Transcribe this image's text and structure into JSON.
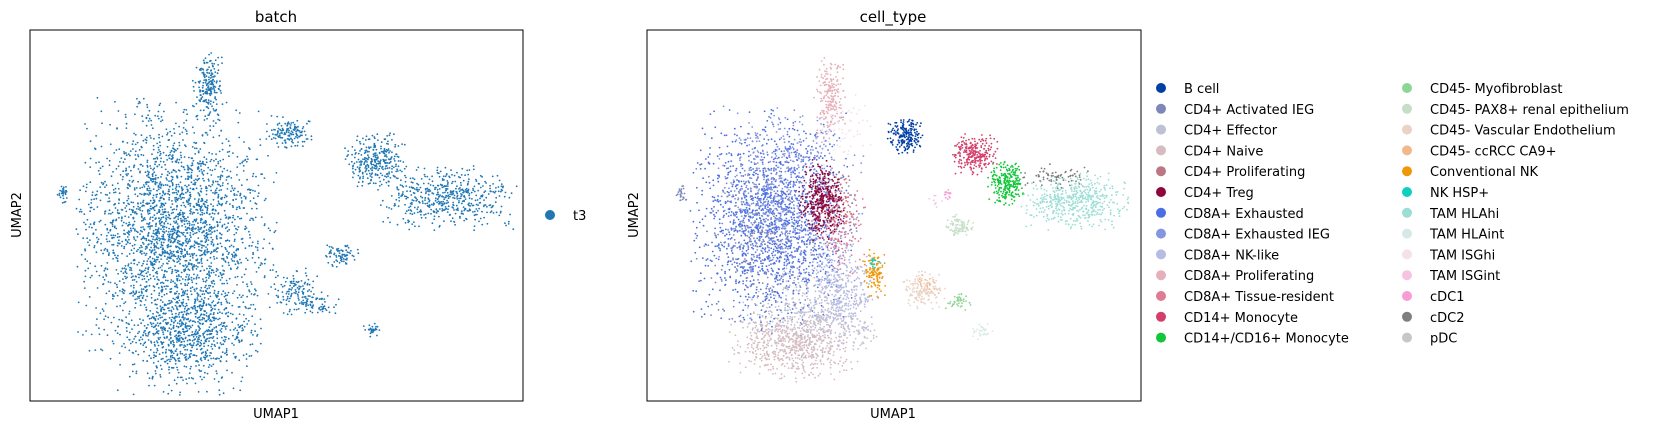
{
  "chart_data": [
    {
      "type": "scatter",
      "title": "batch",
      "xlabel": "UMAP1",
      "ylabel": "UMAP2",
      "ticks": "none",
      "legend": {
        "placement": "right",
        "entries": [
          {
            "name": "t3",
            "color": "#1f77b4"
          }
        ]
      },
      "series": [
        {
          "name": "t3",
          "color": "#1f77b4",
          "regions": [
            {
              "cx": 3.5,
              "cy": 4.6,
              "rx": 2.2,
              "ry": 3.2,
              "n": 2600
            },
            {
              "cx": 3.8,
              "cy": 1.6,
              "rx": 1.6,
              "ry": 1.4,
              "n": 700
            },
            {
              "cx": 4.3,
              "cy": 8.6,
              "rx": 0.35,
              "ry": 0.9,
              "n": 200
            },
            {
              "cx": 6.3,
              "cy": 7.3,
              "rx": 0.5,
              "ry": 0.4,
              "n": 140
            },
            {
              "cx": 8.5,
              "cy": 6.5,
              "rx": 0.7,
              "ry": 0.7,
              "n": 300
            },
            {
              "cx": 10.3,
              "cy": 5.5,
              "rx": 1.5,
              "ry": 0.8,
              "n": 500
            },
            {
              "cx": 7.6,
              "cy": 3.9,
              "rx": 0.4,
              "ry": 0.3,
              "n": 80
            },
            {
              "cx": 6.5,
              "cy": 2.9,
              "rx": 0.6,
              "ry": 0.6,
              "n": 120
            },
            {
              "cx": 7.0,
              "cy": 2.5,
              "rx": 0.5,
              "ry": 0.25,
              "n": 50
            },
            {
              "cx": 8.4,
              "cy": 1.8,
              "rx": 0.2,
              "ry": 0.2,
              "n": 30
            },
            {
              "cx": 0.7,
              "cy": 5.6,
              "rx": 0.15,
              "ry": 0.25,
              "n": 30
            }
          ]
        }
      ]
    },
    {
      "type": "scatter",
      "title": "cell_type",
      "xlabel": "UMAP1",
      "ylabel": "UMAP2",
      "ticks": "none",
      "legend": {
        "placement": "right",
        "columns": 2,
        "entries": [
          {
            "name": "B cell",
            "color": "#023fa5"
          },
          {
            "name": "CD4+ Activated IEG",
            "color": "#7d87b9"
          },
          {
            "name": "CD4+ Effector",
            "color": "#bec1d4"
          },
          {
            "name": "CD4+ Naive",
            "color": "#d6bcc0"
          },
          {
            "name": "CD4+ Proliferating",
            "color": "#bb7784"
          },
          {
            "name": "CD4+ Treg",
            "color": "#8e063b"
          },
          {
            "name": "CD8A+ Exhausted",
            "color": "#4a6fe3"
          },
          {
            "name": "CD8A+ Exhausted IEG",
            "color": "#8595e1"
          },
          {
            "name": "CD8A+ NK-like",
            "color": "#b5bbe3"
          },
          {
            "name": "CD8A+ Proliferating",
            "color": "#e6afb9"
          },
          {
            "name": "CD8A+ Tissue-resident",
            "color": "#e07b91"
          },
          {
            "name": "CD14+ Monocyte",
            "color": "#d33f6a"
          },
          {
            "name": "CD14+/CD16+ Monocyte",
            "color": "#11c638"
          },
          {
            "name": "CD45- Myofibroblast",
            "color": "#8dd593"
          },
          {
            "name": "CD45- PAX8+ renal epithelium",
            "color": "#c6dec7"
          },
          {
            "name": "CD45- Vascular Endothelium",
            "color": "#ead3c6"
          },
          {
            "name": "CD45- ccRCC CA9+",
            "color": "#f0b98d"
          },
          {
            "name": "Conventional NK",
            "color": "#ef9708"
          },
          {
            "name": "NK HSP+",
            "color": "#0fcfc0"
          },
          {
            "name": "TAM HLAhi",
            "color": "#9cded6"
          },
          {
            "name": "TAM HLAint",
            "color": "#d5eae7"
          },
          {
            "name": "TAM ISGhi",
            "color": "#f3e1eb"
          },
          {
            "name": "TAM ISGint",
            "color": "#f6c4e1"
          },
          {
            "name": "cDC1",
            "color": "#f79cd4"
          },
          {
            "name": "cDC2",
            "color": "#7f7f7f"
          },
          {
            "name": "pDC",
            "color": "#c7c7c7"
          }
        ]
      },
      "series": [
        {
          "name": "CD8A+ Exhausted",
          "color": "#4a6fe3",
          "regions": [
            {
              "cx": 3.0,
              "cy": 4.8,
              "rx": 1.8,
              "ry": 2.8,
              "n": 1500
            }
          ]
        },
        {
          "name": "CD8A+ Exhausted IEG",
          "color": "#8595e1",
          "regions": [
            {
              "cx": 3.4,
              "cy": 5.6,
              "rx": 1.6,
              "ry": 2.2,
              "n": 700
            }
          ]
        },
        {
          "name": "CD4+ Activated IEG",
          "color": "#7d87b9",
          "regions": [
            {
              "cx": 2.8,
              "cy": 4.2,
              "rx": 1.5,
              "ry": 2.0,
              "n": 300
            }
          ]
        },
        {
          "name": "CD8A+ NK-like",
          "color": "#b5bbe3",
          "regions": [
            {
              "cx": 4.7,
              "cy": 2.9,
              "rx": 0.8,
              "ry": 1.4,
              "n": 400
            }
          ]
        },
        {
          "name": "CD4+ Effector",
          "color": "#bec1d4",
          "regions": [
            {
              "cx": 3.8,
              "cy": 2.2,
              "rx": 1.4,
              "ry": 1.2,
              "n": 400
            }
          ]
        },
        {
          "name": "CD4+ Naive",
          "color": "#d6bcc0",
          "regions": [
            {
              "cx": 3.5,
              "cy": 1.4,
              "rx": 1.4,
              "ry": 0.9,
              "n": 600
            }
          ]
        },
        {
          "name": "CD4+ Proliferating",
          "color": "#bb7784",
          "regions": [
            {
              "cx": 4.6,
              "cy": 5.2,
              "rx": 0.5,
              "ry": 1.0,
              "n": 100
            }
          ]
        },
        {
          "name": "CD4+ Treg",
          "color": "#8e063b",
          "regions": [
            {
              "cx": 4.2,
              "cy": 5.4,
              "rx": 0.5,
              "ry": 1.0,
              "n": 400
            }
          ]
        },
        {
          "name": "CD8A+ Proliferating",
          "color": "#e6afb9",
          "regions": [
            {
              "cx": 4.4,
              "cy": 8.2,
              "rx": 0.35,
              "ry": 1.1,
              "n": 200
            }
          ]
        },
        {
          "name": "CD8A+ Tissue-resident",
          "color": "#e07b91",
          "regions": [
            {
              "cx": 4.7,
              "cy": 4.6,
              "rx": 0.6,
              "ry": 1.2,
              "n": 120
            }
          ]
        },
        {
          "name": "B cell",
          "color": "#023fa5",
          "regions": [
            {
              "cx": 6.3,
              "cy": 7.2,
              "rx": 0.4,
              "ry": 0.45,
              "n": 200
            }
          ]
        },
        {
          "name": "CD14+ Monocyte",
          "color": "#d33f6a",
          "regions": [
            {
              "cx": 8.0,
              "cy": 6.7,
              "rx": 0.5,
              "ry": 0.5,
              "n": 250
            }
          ]
        },
        {
          "name": "CD14+/CD16+ Monocyte",
          "color": "#11c638",
          "regions": [
            {
              "cx": 8.8,
              "cy": 5.9,
              "rx": 0.4,
              "ry": 0.55,
              "n": 250
            }
          ]
        },
        {
          "name": "TAM HLAhi",
          "color": "#9cded6",
          "regions": [
            {
              "cx": 10.5,
              "cy": 5.4,
              "rx": 1.2,
              "ry": 0.7,
              "n": 500
            }
          ]
        },
        {
          "name": "cDC2",
          "color": "#7f7f7f",
          "regions": [
            {
              "cx": 10.0,
              "cy": 6.1,
              "rx": 0.8,
              "ry": 0.3,
              "n": 70
            }
          ]
        },
        {
          "name": "CD45- PAX8+ renal epithelium",
          "color": "#c6dec7",
          "regions": [
            {
              "cx": 7.6,
              "cy": 4.7,
              "rx": 0.35,
              "ry": 0.3,
              "n": 90
            }
          ]
        },
        {
          "name": "Conventional NK",
          "color": "#ef9708",
          "regions": [
            {
              "cx": 5.5,
              "cy": 3.4,
              "rx": 0.25,
              "ry": 0.6,
              "n": 120
            }
          ]
        },
        {
          "name": "NK HSP+",
          "color": "#0fcfc0",
          "regions": [
            {
              "cx": 5.5,
              "cy": 3.7,
              "rx": 0.15,
              "ry": 0.15,
              "n": 15
            }
          ]
        },
        {
          "name": "CD45- Vascular Endothelium",
          "color": "#ead3c6",
          "regions": [
            {
              "cx": 6.7,
              "cy": 2.9,
              "rx": 0.5,
              "ry": 0.5,
              "n": 150
            }
          ]
        },
        {
          "name": "CD45- Myofibroblast",
          "color": "#8dd593",
          "regions": [
            {
              "cx": 7.6,
              "cy": 2.6,
              "rx": 0.3,
              "ry": 0.2,
              "n": 40
            }
          ]
        },
        {
          "name": "TAM HLAint",
          "color": "#d5eae7",
          "regions": [
            {
              "cx": 8.2,
              "cy": 1.8,
              "rx": 0.25,
              "ry": 0.25,
              "n": 30
            }
          ]
        },
        {
          "name": "cDC1",
          "color": "#f79cd4",
          "regions": [
            {
              "cx": 7.3,
              "cy": 5.6,
              "rx": 0.15,
              "ry": 0.15,
              "n": 15
            }
          ]
        },
        {
          "name": "TAM ISGhi",
          "color": "#f3e1eb",
          "regions": [
            {
              "cx": 4.8,
              "cy": 7.4,
              "rx": 0.6,
              "ry": 1.0,
              "n": 60
            }
          ]
        },
        {
          "name": "pDC",
          "color": "#c7c7c7",
          "regions": [
            {
              "cx": 5.3,
              "cy": 1.7,
              "rx": 0.3,
              "ry": 0.4,
              "n": 30
            }
          ]
        },
        {
          "name": "CD45- ccRCC CA9+",
          "color": "#f0b98d",
          "regions": [
            {
              "cx": 6.9,
              "cy": 3.1,
              "rx": 0.3,
              "ry": 0.3,
              "n": 20
            }
          ]
        },
        {
          "name": "TAM ISGint",
          "color": "#f6c4e1",
          "regions": [
            {
              "cx": 7.0,
              "cy": 5.4,
              "rx": 0.2,
              "ry": 0.2,
              "n": 10
            }
          ]
        },
        {
          "name": "CD4+ Activated IEG",
          "color": "#7d87b9",
          "regions": [
            {
              "cx": 0.7,
              "cy": 5.6,
              "rx": 0.12,
              "ry": 0.25,
              "n": 25
            }
          ]
        }
      ]
    }
  ]
}
